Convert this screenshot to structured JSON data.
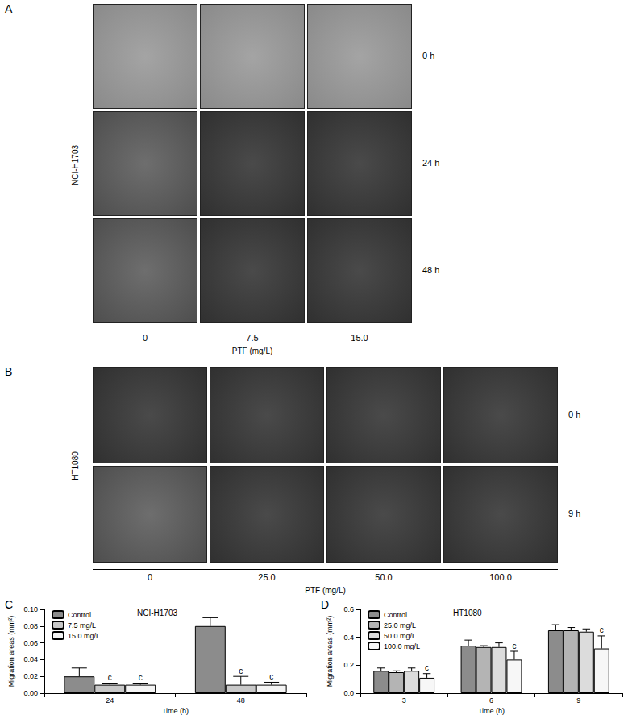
{
  "panels": [
    {
      "label": "A",
      "cell_line": "NCI-H1703",
      "rows": [
        "0 h",
        "24 h",
        "48 h"
      ],
      "columns": [
        "0",
        "7.5",
        "15.0"
      ],
      "axis_label": "PTF (mg/L)"
    },
    {
      "label": "B",
      "cell_line": "HT1080",
      "rows": [
        "0 h",
        "9 h"
      ],
      "columns": [
        "0",
        "25.0",
        "50.0",
        "100.0"
      ],
      "axis_label": "PTF (mg/L)"
    }
  ],
  "chart_data": [
    {
      "panel": "C",
      "type": "bar",
      "title": "NCI-H1703",
      "x_label": "Time (h)",
      "y_label": "Migration areas (mm²)",
      "categories": [
        "24",
        "48"
      ],
      "ylim": [
        0,
        0.1
      ],
      "yticks": [
        {
          "value": 0,
          "label": "0.00"
        },
        0.02,
        0.04,
        0.06,
        0.08,
        {
          "value": 0.1,
          "label": "0.10"
        }
      ],
      "grid": false,
      "legend": "upper left",
      "series": [
        {
          "name": "Control",
          "color": "#8c8c8c",
          "values": [
            0.02,
            0.08
          ],
          "errors": [
            0.01,
            0.01
          ],
          "significance": [
            null,
            null
          ]
        },
        {
          "name": "7.5 mg/L",
          "color": "#c8c8c8",
          "values": [
            0.01,
            0.01
          ],
          "errors": [
            0.002,
            0.01
          ],
          "significance": [
            "c",
            "c"
          ]
        },
        {
          "name": "15.0 mg/L",
          "color": "#f4f4f4",
          "values": [
            0.01,
            0.01
          ],
          "errors": [
            0.002,
            0.003
          ],
          "significance": [
            "c",
            "c"
          ]
        }
      ]
    },
    {
      "panel": "D",
      "type": "bar",
      "title": "HT1080",
      "x_label": "Time (h)",
      "y_label": "Migration areas (mm²)",
      "categories": [
        "3",
        "6",
        "9"
      ],
      "ylim": [
        0,
        0.6
      ],
      "yticks": [
        {
          "value": 0,
          "label": "0.0"
        },
        0.2,
        0.4,
        0.6
      ],
      "grid": false,
      "legend": "upper left",
      "series": [
        {
          "name": "Control",
          "color": "#8c8c8c",
          "values": [
            0.16,
            0.34,
            0.45
          ],
          "errors": [
            0.02,
            0.04,
            0.04
          ],
          "significance": [
            null,
            null,
            null
          ]
        },
        {
          "name": "25.0 mg/L",
          "color": "#b4b4b4",
          "values": [
            0.15,
            0.33,
            0.45
          ],
          "errors": [
            0.01,
            0.01,
            0.02
          ],
          "significance": [
            null,
            null,
            null
          ]
        },
        {
          "name": "50.0 mg/L",
          "color": "#dcdcdc",
          "values": [
            0.16,
            0.33,
            0.44
          ],
          "errors": [
            0.02,
            0.03,
            0.02
          ],
          "significance": [
            null,
            null,
            null
          ]
        },
        {
          "name": "100.0 mg/L",
          "color": "#f7f7f7",
          "values": [
            0.11,
            0.24,
            0.32
          ],
          "errors": [
            0.03,
            0.06,
            0.09
          ],
          "significance": [
            "c",
            "c",
            "c"
          ]
        }
      ]
    }
  ]
}
